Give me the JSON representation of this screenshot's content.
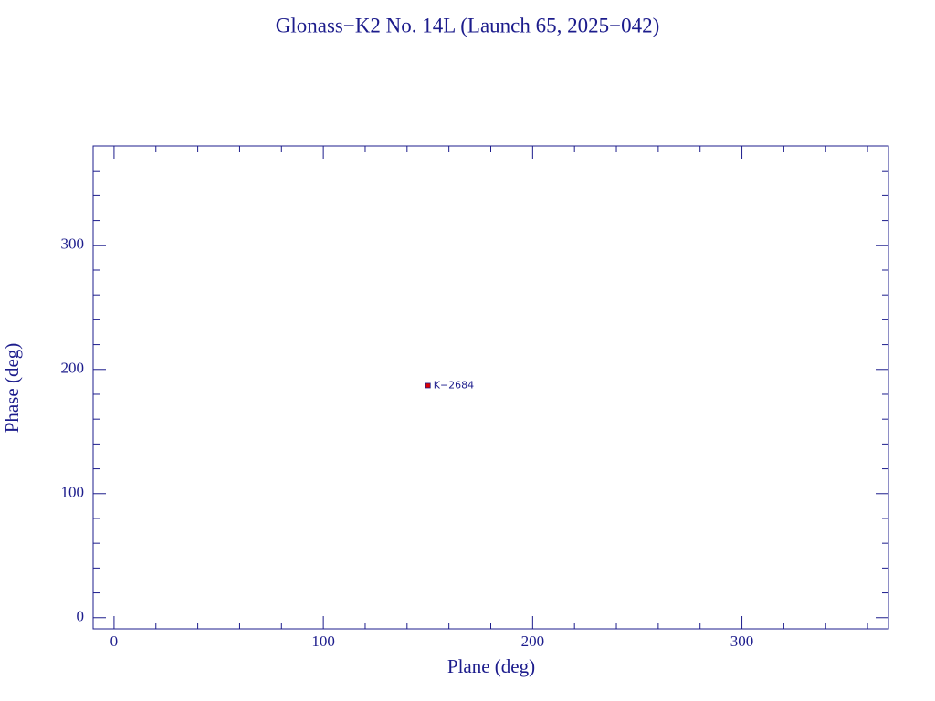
{
  "chart_data": {
    "type": "scatter",
    "title": "Glonass−K2 No. 14L (Launch 65, 2025−042)",
    "xlabel": "Plane (deg)",
    "ylabel": "Phase (deg)",
    "x": [
      150
    ],
    "values": [
      187
    ],
    "point_labels": [
      "K−2684"
    ],
    "color": "#e00000",
    "axis_color": "#1c1c8c",
    "xlim": [
      -10,
      370
    ],
    "ylim": [
      -9,
      380
    ],
    "xticks": [
      0,
      100,
      200,
      300
    ],
    "yticks": [
      0,
      100,
      200,
      300
    ],
    "xminorticks": [
      20,
      40,
      60,
      80,
      120,
      140,
      160,
      180,
      220,
      240,
      260,
      280,
      320,
      340,
      360
    ],
    "yminorticks": [
      20,
      40,
      60,
      80,
      120,
      140,
      160,
      180,
      220,
      240,
      260,
      280,
      320,
      340,
      360
    ]
  }
}
